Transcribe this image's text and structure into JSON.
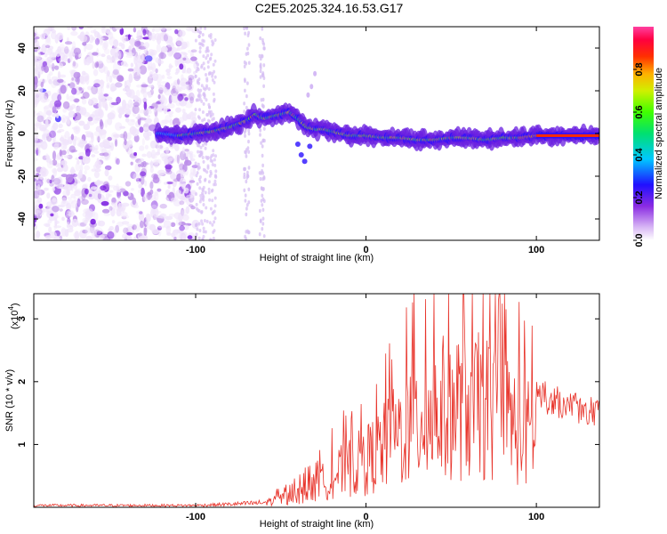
{
  "figure": {
    "title": "C2E5.2025.324.16.53.G17"
  },
  "chart_data": [
    {
      "type": "heatmap",
      "title": "C2E5.2025.324.16.53.G17",
      "xlabel": "Height of straight line (km)",
      "ylabel": "Frequency (Hz)",
      "xlim": [
        -195,
        137
      ],
      "ylim": [
        -50,
        50
      ],
      "xticks": [
        -100,
        0,
        100
      ],
      "yticks": [
        -40,
        -20,
        0,
        20,
        40
      ],
      "ridge": {
        "description": "frequency of peak spectral amplitude vs height",
        "x": [
          -120,
          -110,
          -100,
          -90,
          -80,
          -70,
          -65,
          -60,
          -55,
          -50,
          -45,
          -40,
          -35,
          -30,
          -25,
          -20,
          -10,
          0,
          10,
          20,
          30,
          40,
          50,
          60,
          70,
          80,
          90,
          100,
          110,
          120,
          130,
          137
        ],
        "y": [
          0,
          -1,
          0,
          1,
          3,
          6,
          9,
          7,
          8,
          9,
          10,
          7,
          3,
          2,
          2,
          1,
          -1,
          -1,
          -2,
          -2,
          -3,
          -3,
          -2,
          -2,
          -3,
          -2,
          -2,
          -1,
          -1,
          -1,
          -1,
          -1
        ]
      },
      "colorbar": {
        "label": "Normalized spectral amplitude",
        "range": [
          0,
          1
        ],
        "ticks": [
          "0.0",
          "0.2",
          "0.4",
          "0.6",
          "0.8"
        ]
      }
    },
    {
      "type": "line",
      "xlabel": "Height of straight line (km)",
      "ylabel": "SNR (10 * v/v)",
      "scale_label": "(x10",
      "scale_exp": "4",
      "scale_close": ")",
      "xlim": [
        -195,
        137
      ],
      "ylim": [
        0,
        3.4
      ],
      "xticks": [
        -100,
        0,
        100
      ],
      "yticks": [
        1,
        2,
        3
      ],
      "series": [
        {
          "name": "SNR",
          "color": "#e8342b",
          "envelope_x": [
            -195,
            -150,
            -100,
            -80,
            -60,
            -40,
            -30,
            -20,
            -10,
            0,
            10,
            20,
            30,
            40,
            50,
            60,
            70,
            80,
            90,
            100,
            110,
            120,
            137
          ],
          "envelope_y": [
            0.05,
            0.05,
            0.05,
            0.08,
            0.12,
            0.3,
            0.5,
            0.8,
            1.0,
            1.2,
            1.5,
            1.9,
            2.2,
            2.4,
            2.6,
            2.6,
            2.5,
            2.4,
            2.0,
            1.8,
            1.7,
            1.6,
            1.5
          ]
        }
      ]
    }
  ],
  "colors": {
    "series": "#e8342b",
    "frame": "#000000"
  }
}
